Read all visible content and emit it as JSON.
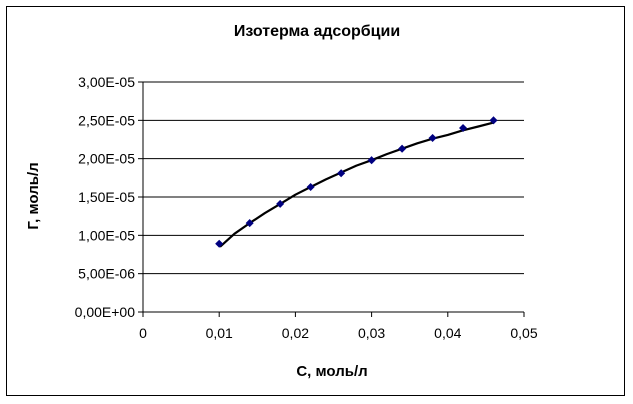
{
  "chart_data": {
    "type": "scatter",
    "title": "Изотерма адсорбции",
    "xlabel": "С, моль/л",
    "ylabel": "Г, моль/л",
    "xlim": [
      0,
      0.05
    ],
    "ylim": [
      0,
      3e-05
    ],
    "x_ticks": [
      0,
      0.01,
      0.02,
      0.03,
      0.04,
      0.05
    ],
    "x_tick_labels": [
      "0",
      "0,01",
      "0,02",
      "0,03",
      "0,04",
      "0,05"
    ],
    "y_ticks": [
      0,
      5e-06,
      1e-05,
      1.5e-05,
      2e-05,
      2.5e-05,
      3e-05
    ],
    "y_tick_labels": [
      "0,00E+00",
      "5,00E-06",
      "1,00E-05",
      "1,50E-05",
      "2,00E-05",
      "2,50E-05",
      "3,00E-05"
    ],
    "grid": "horizontal",
    "legend": "none",
    "series": [
      {
        "points": {
          "x": [
            0.01,
            0.014,
            0.018,
            0.022,
            0.026,
            0.03,
            0.034,
            0.038,
            0.042,
            0.046
          ],
          "y": [
            8.9e-06,
            1.16e-05,
            1.41e-05,
            1.63e-05,
            1.81e-05,
            1.98e-05,
            2.13e-05,
            2.27e-05,
            2.4e-05,
            2.5e-05
          ]
        },
        "trend": {
          "x": [
            0.0101,
            0.012,
            0.014,
            0.016,
            0.018,
            0.02,
            0.022,
            0.024,
            0.026,
            0.028,
            0.03,
            0.032,
            0.034,
            0.036,
            0.038,
            0.04,
            0.042,
            0.044,
            0.046
          ],
          "y": [
            8.5e-06,
            1.02e-05,
            1.16e-05,
            1.29e-05,
            1.41e-05,
            1.53e-05,
            1.63e-05,
            1.73e-05,
            1.82e-05,
            1.91e-05,
            1.98e-05,
            2.06e-05,
            2.13e-05,
            2.2e-05,
            2.26e-05,
            2.31e-05,
            2.37e-05,
            2.42e-05,
            2.47e-05
          ]
        },
        "marker_color": "#000080",
        "line_color": "#000000"
      }
    ]
  }
}
